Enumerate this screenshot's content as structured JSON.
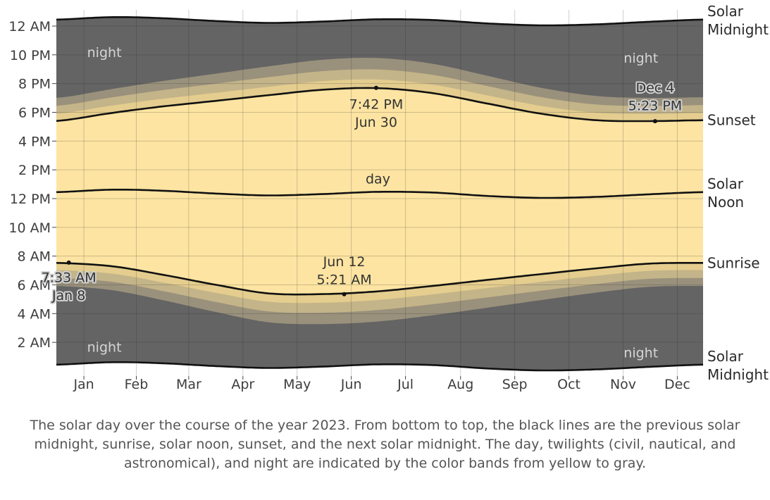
{
  "chart_data": {
    "type": "area",
    "title": "",
    "year": 2023,
    "xlabel": "",
    "ylabel": "",
    "months": [
      "Jan",
      "Feb",
      "Mar",
      "Apr",
      "May",
      "Jun",
      "Jul",
      "Aug",
      "Sep",
      "Oct",
      "Nov",
      "Dec"
    ],
    "y_ticks": [
      {
        "hour": 2,
        "label": "2 AM"
      },
      {
        "hour": 4,
        "label": "4 AM"
      },
      {
        "hour": 6,
        "label": "6 AM"
      },
      {
        "hour": 8,
        "label": "8 AM"
      },
      {
        "hour": 10,
        "label": "10 AM"
      },
      {
        "hour": 12,
        "label": "12 PM"
      },
      {
        "hour": 14,
        "label": "2 PM"
      },
      {
        "hour": 16,
        "label": "4 PM"
      },
      {
        "hour": 18,
        "label": "6 PM"
      },
      {
        "hour": 20,
        "label": "8 PM"
      },
      {
        "hour": 22,
        "label": "10 PM"
      },
      {
        "hour": 24,
        "label": "12 AM"
      }
    ],
    "ylim": [
      0,
      24.5
    ],
    "day_points": [
      1,
      32,
      60,
      91,
      121,
      152,
      182,
      213,
      244,
      274,
      305,
      335,
      365
    ],
    "series": [
      {
        "name": "Solar Midnight",
        "hours": [
          0.45,
          0.62,
          0.55,
          0.35,
          0.22,
          0.32,
          0.47,
          0.42,
          0.18,
          0.05,
          0.12,
          0.3,
          0.45
        ]
      },
      {
        "name": "Sunrise",
        "hours": [
          7.53,
          7.3,
          6.72,
          6.0,
          5.4,
          5.36,
          5.55,
          5.93,
          6.35,
          6.75,
          7.15,
          7.48,
          7.53
        ]
      },
      {
        "name": "Solar Noon",
        "hours": [
          12.45,
          12.62,
          12.55,
          12.35,
          12.22,
          12.32,
          12.47,
          12.42,
          12.18,
          12.05,
          12.12,
          12.3,
          12.45
        ]
      },
      {
        "name": "Sunset",
        "hours": [
          17.4,
          17.95,
          18.4,
          18.8,
          19.2,
          19.58,
          19.68,
          19.33,
          18.6,
          17.9,
          17.45,
          17.39,
          17.45
        ]
      },
      {
        "name": "Solar Midnight",
        "hours": [
          24.45,
          24.62,
          24.55,
          24.35,
          24.22,
          24.32,
          24.47,
          24.42,
          24.18,
          24.05,
          24.12,
          24.3,
          24.45
        ]
      }
    ],
    "twilight_bands": [
      {
        "name": "civil twilight",
        "color": "#e4cd8e",
        "depth_winter": 0.5,
        "depth_summer": 0.6
      },
      {
        "name": "nautical twilight",
        "color": "#c4b489",
        "depth_winter": 1.05,
        "depth_summer": 1.3
      },
      {
        "name": "astronomical twilight",
        "color": "#9a917c",
        "depth_winter": 1.6,
        "depth_summer": 2.1
      }
    ],
    "colors": {
      "day": "#fde4a2",
      "night": "#646464",
      "line": "#111111",
      "grid_day": "#cfb97e",
      "grid_night": "#555555",
      "axis_text": "#3d3d3d"
    },
    "line_labels": [
      {
        "text": [
          "Solar",
          "Midnight"
        ],
        "hour": 24.45
      },
      {
        "text": [
          "Sunset"
        ],
        "hour": 17.45
      },
      {
        "text": [
          "Solar",
          "Noon"
        ],
        "hour": 12.45
      },
      {
        "text": [
          "Sunrise"
        ],
        "hour": 7.53
      },
      {
        "text": [
          "Solar",
          "Midnight"
        ],
        "hour": 0.45
      }
    ],
    "region_labels": [
      {
        "text": "night",
        "day": 28,
        "hour": 22.2,
        "style": "night"
      },
      {
        "text": "night",
        "day": 330,
        "hour": 21.8,
        "style": "night"
      },
      {
        "text": "night",
        "day": 28,
        "hour": 1.7,
        "style": "night"
      },
      {
        "text": "night",
        "day": 330,
        "hour": 1.3,
        "style": "night"
      },
      {
        "text": "day",
        "day": 182,
        "hour": 13.4,
        "style": "day"
      }
    ],
    "annotations": [
      {
        "event": "latest sunset",
        "day": 181,
        "hour": 19.7,
        "lines": [
          "7:42 PM",
          "Jun 30"
        ],
        "offset_lines": [
          1.1,
          2.35
        ],
        "halo": false
      },
      {
        "event": "earliest sunset",
        "day": 338,
        "hour": 17.38,
        "lines": [
          "Dec 4",
          "5:23 PM"
        ],
        "offset_lines": [
          -2.35,
          -1.1
        ],
        "halo": true
      },
      {
        "event": "earliest sunrise",
        "day": 163,
        "hour": 5.35,
        "lines": [
          "Jun 12",
          "5:21 AM"
        ],
        "offset_lines": [
          -2.3,
          -1.05
        ],
        "halo": false
      },
      {
        "event": "latest sunrise",
        "day": 8,
        "hour": 7.55,
        "lines": [
          "7:33 AM",
          "Jan 8"
        ],
        "offset_lines": [
          1.0,
          2.25
        ],
        "halo": true
      }
    ]
  },
  "caption": "The solar day over the course of the year 2023. From bottom to top, the black lines are the previous solar midnight, sunrise, solar noon, sunset, and the next solar midnight. The day, twilights (civil, nautical, and astronomical), and night are indicated by the color bands from yellow to gray."
}
